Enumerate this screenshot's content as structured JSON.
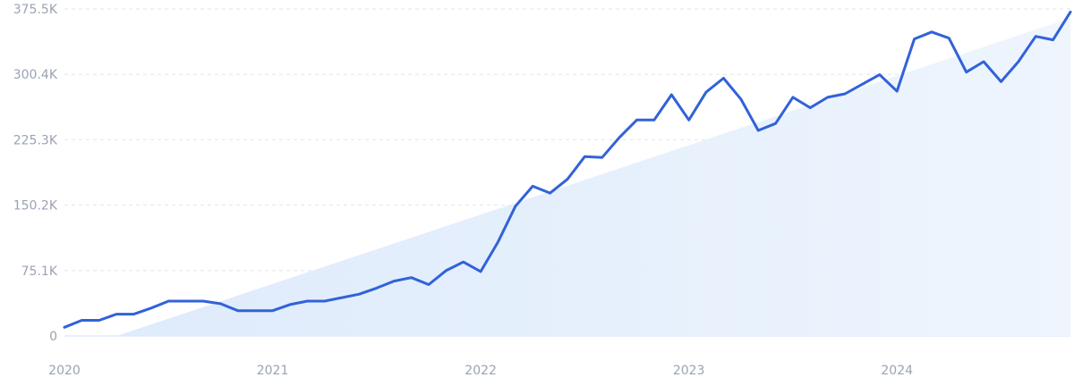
{
  "chart_data": {
    "type": "line",
    "title": "",
    "xlabel": "",
    "ylabel": "",
    "x_ticks": [
      "2020",
      "2021",
      "2022",
      "2023",
      "2024"
    ],
    "y_ticks": [
      "0",
      "75.1K",
      "150.2K",
      "225.3K",
      "300.4K",
      "375.5K"
    ],
    "ylim": [
      0,
      375500
    ],
    "grid": true,
    "legend": "none",
    "colors": {
      "line": "#3162d9",
      "trend_fill": "#e8f1fc",
      "grid": "#dfe6ef",
      "tick_text": "#9aa3b2"
    },
    "series": [
      {
        "x": [
          "2020-01",
          "2020-02",
          "2020-03",
          "2020-04",
          "2020-05",
          "2020-06",
          "2020-07",
          "2020-08",
          "2020-09",
          "2020-10",
          "2020-11",
          "2020-12",
          "2021-01",
          "2021-02",
          "2021-03",
          "2021-04",
          "2021-05",
          "2021-06",
          "2021-07",
          "2021-08",
          "2021-09",
          "2021-10",
          "2021-11",
          "2021-12",
          "2022-01",
          "2022-02",
          "2022-03",
          "2022-04",
          "2022-05",
          "2022-06",
          "2022-07",
          "2022-08",
          "2022-09",
          "2022-10",
          "2022-11",
          "2022-12",
          "2023-01",
          "2023-02",
          "2023-03",
          "2023-04",
          "2023-05",
          "2023-06",
          "2023-07",
          "2023-08",
          "2023-09",
          "2023-10",
          "2023-11",
          "2023-12",
          "2024-01",
          "2024-02",
          "2024-03",
          "2024-04",
          "2024-05",
          "2024-06",
          "2024-07",
          "2024-08",
          "2024-09",
          "2024-10",
          "2024-11"
        ],
        "values": [
          10000,
          18000,
          18000,
          25000,
          25000,
          32000,
          40000,
          40000,
          40000,
          37000,
          29000,
          29000,
          29000,
          36000,
          40000,
          40000,
          44000,
          48000,
          55000,
          63000,
          67000,
          59000,
          75000,
          85000,
          74000,
          108000,
          149000,
          172000,
          164000,
          180000,
          206000,
          205000,
          228000,
          248000,
          248000,
          277000,
          248000,
          280000,
          296000,
          272000,
          236000,
          244000,
          274000,
          262000,
          274000,
          278000,
          289000,
          300000,
          281000,
          341000,
          349000,
          342000,
          303000,
          315000,
          292000,
          315000,
          344000,
          340000,
          372000
        ]
      }
    ],
    "trend_area": {
      "x": [
        "2020-04",
        "2024-11"
      ],
      "values": [
        0,
        365000
      ]
    }
  }
}
